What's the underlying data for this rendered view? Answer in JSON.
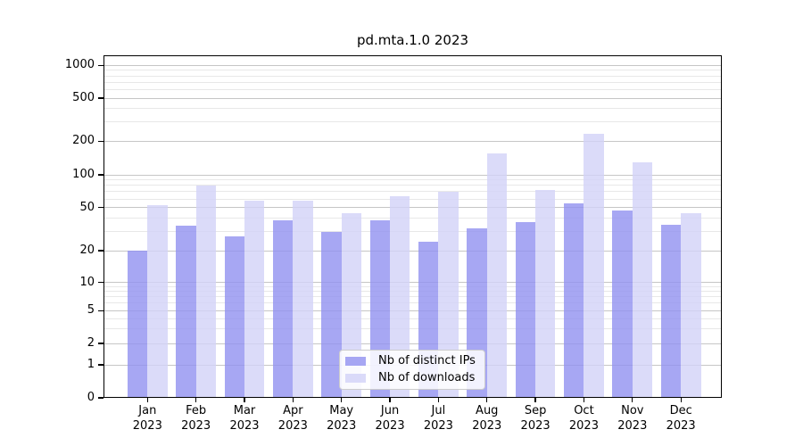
{
  "title": "pd.mta.1.0 2023",
  "chart_data": {
    "type": "bar",
    "title": "pd.mta.1.0 2023",
    "categories": [
      "Jan",
      "Feb",
      "Mar",
      "Apr",
      "May",
      "Jun",
      "Jul",
      "Aug",
      "Sep",
      "Oct",
      "Nov",
      "Dec"
    ],
    "category_year_line": "2023",
    "series": [
      {
        "name": "Nb of distinct IPs",
        "color": "#9191f0",
        "alpha": 0.8,
        "values": [
          20,
          34,
          27,
          38,
          30,
          38,
          24,
          32,
          37,
          55,
          47,
          35
        ]
      },
      {
        "name": "Nb of downloads",
        "color": "#d2d2f7",
        "alpha": 0.8,
        "values": [
          53,
          80,
          58,
          58,
          44,
          63,
          70,
          155,
          72,
          235,
          130,
          44
        ]
      }
    ],
    "xlabel": "",
    "ylabel": "",
    "yscale": "symlog",
    "yticks": [
      0,
      1,
      2,
      5,
      10,
      20,
      50,
      100,
      200,
      500,
      1000
    ],
    "ylim": [
      0,
      1240
    ],
    "grid": true,
    "legend_position": "lower center"
  },
  "colors": {
    "major_grid": "#c6c6c6",
    "minor_grid": "#e8e8e8",
    "spine": "#000000",
    "text": "#000000",
    "legend_border": "#cccccc",
    "legend_bg": "#ffffff"
  }
}
